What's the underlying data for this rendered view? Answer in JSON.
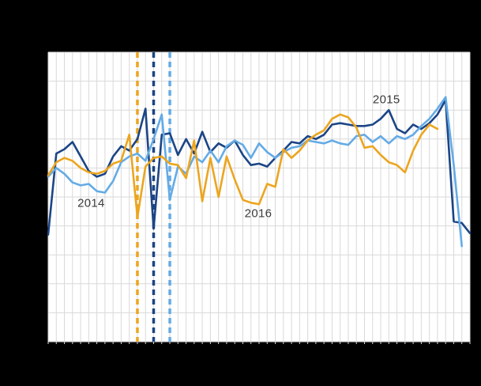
{
  "colors": {
    "background": "#000000",
    "plot_background": "#ffffff",
    "grid": "#d9d9d9",
    "label_text": "#3b3b3b",
    "series_2014": "#1b4586",
    "series_2015": "#64abe6",
    "series_2016": "#eca51f"
  },
  "chart_data": {
    "type": "line",
    "title": "",
    "xlabel": "",
    "ylabel": "",
    "axis_tick_labels_visible": false,
    "grid": "on",
    "x_axis": {
      "unit": "week",
      "min": 1,
      "max": 53,
      "gridline_every": 1
    },
    "y_axis": {
      "min": 0,
      "max": 100,
      "gridline_rows": 10,
      "note": "values estimated as % of plot height; no numeric tick labels are visible in the image"
    },
    "series": [
      {
        "name": "2014",
        "color_key": "series_2014",
        "start_week": 1,
        "values": [
          37,
          65,
          66.5,
          69,
          64,
          59,
          57,
          58,
          64,
          67.5,
          66,
          70,
          80.5,
          39,
          71.5,
          72,
          64.5,
          70,
          65,
          72.5,
          65.5,
          68.5,
          67,
          69.5,
          64.5,
          61,
          61.5,
          60.5,
          63.5,
          66,
          69,
          68.5,
          71,
          70,
          71.5,
          75,
          75.5,
          75,
          74.5,
          74.5,
          75,
          77,
          80,
          73.5,
          72,
          75,
          73.5,
          75.5,
          78.5,
          83.5,
          41.5,
          41,
          37.5
        ]
      },
      {
        "name": "2015",
        "color_key": "series_2015",
        "start_week": 1,
        "values": [
          57,
          60,
          58,
          55,
          54,
          54.5,
          52,
          51.5,
          55.5,
          62,
          64,
          65,
          62.5,
          70,
          78.5,
          49,
          60.5,
          58,
          64,
          62,
          66,
          62,
          67.5,
          69.5,
          68,
          63.5,
          68.5,
          65.5,
          63.5,
          65.5,
          67,
          67.5,
          69.5,
          69,
          68.5,
          69.5,
          68.5,
          68,
          71,
          71.5,
          69,
          71,
          68.5,
          71,
          70,
          71.5,
          74.5,
          77,
          80.5,
          84.5,
          61,
          33
        ]
      },
      {
        "name": "2016",
        "color_key": "series_2016",
        "start_week": 1,
        "values": [
          57.5,
          62,
          63.5,
          62.5,
          60,
          58.5,
          58,
          59,
          61.5,
          62.5,
          71.5,
          43,
          60.5,
          63.5,
          64,
          61.5,
          61,
          56.5,
          69.5,
          48.5,
          63.5,
          50,
          64,
          56,
          49,
          48,
          47.5,
          54.5,
          53.5,
          66.5,
          63.5,
          66,
          69.5,
          71.5,
          73,
          77,
          78.5,
          77.5,
          74,
          67,
          67.5,
          64.5,
          62,
          61,
          58.5,
          66,
          71.5,
          75,
          73.5
        ]
      }
    ],
    "vertical_dashed_lines": [
      {
        "week": 12,
        "color_key": "series_2016"
      },
      {
        "week": 14,
        "color_key": "series_2014"
      },
      {
        "week": 16,
        "color_key": "series_2015"
      }
    ],
    "series_labels": [
      {
        "text": "2014",
        "week": 6.3,
        "value": 47.8
      },
      {
        "text": "2015",
        "week": 42.7,
        "value": 83.6
      },
      {
        "text": "2016",
        "week": 26.9,
        "value": 44.3
      }
    ],
    "legend": "none"
  }
}
